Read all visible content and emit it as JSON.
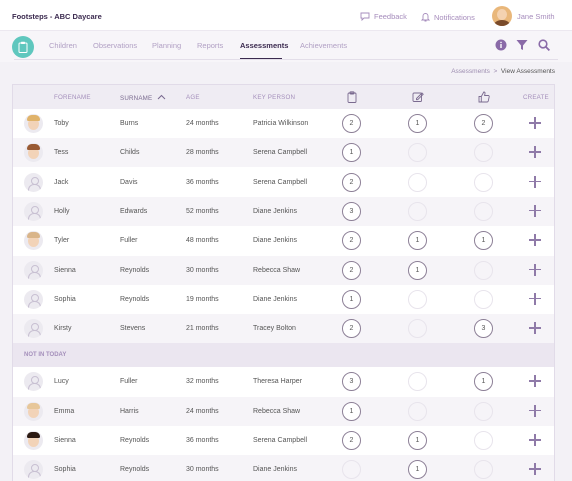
{
  "header": {
    "app_title": "Footsteps - ABC Daycare",
    "feedback": "Feedback",
    "notifications": "Notifications",
    "user_name": "Jane Smith"
  },
  "nav": {
    "tabs": [
      {
        "label": "Children"
      },
      {
        "label": "Observations"
      },
      {
        "label": "Planning"
      },
      {
        "label": "Reports"
      },
      {
        "label": "Assessments",
        "active": true
      },
      {
        "label": "Achievements"
      }
    ]
  },
  "breadcrumb": {
    "parent": "Assessments",
    "separator": ">",
    "current": "View Assessments"
  },
  "table": {
    "columns": {
      "forename": "FORENAME",
      "surname": "SURNAME",
      "age": "AGE",
      "key_person": "KEY PERSON",
      "create": "CREATE"
    },
    "column_icons": [
      "clipboard-icon",
      "edit-icon",
      "thumbs-up-icon"
    ],
    "sorted_column": "surname",
    "today_rows": [
      {
        "forename": "Toby",
        "surname": "Burns",
        "age": "24 months",
        "key_person": "Patricia Wilkinson",
        "c1": "2",
        "c2": "1",
        "c3": "2",
        "avatar": "photo",
        "hair": "#e0b36a"
      },
      {
        "forename": "Tess",
        "surname": "Childs",
        "age": "28 months",
        "key_person": "Serena Campbell",
        "c1": "1",
        "c2": "",
        "c3": "",
        "avatar": "photo",
        "hair": "#9a5b34"
      },
      {
        "forename": "Jack",
        "surname": "Davis",
        "age": "36 months",
        "key_person": "Serena Campbell",
        "c1": "2",
        "c2": "",
        "c3": "",
        "avatar": "blank"
      },
      {
        "forename": "Holly",
        "surname": "Edwards",
        "age": "52 months",
        "key_person": "Diane Jenkins",
        "c1": "3",
        "c2": "",
        "c3": "",
        "avatar": "blank"
      },
      {
        "forename": "Tyler",
        "surname": "Fuller",
        "age": "48 months",
        "key_person": "Diane Jenkins",
        "c1": "2",
        "c2": "1",
        "c3": "1",
        "avatar": "photo",
        "hair": "#d9b58a"
      },
      {
        "forename": "Sienna",
        "surname": "Reynolds",
        "age": "30 months",
        "key_person": "Rebecca Shaw",
        "c1": "2",
        "c2": "1",
        "c3": "",
        "avatar": "blank"
      },
      {
        "forename": "Sophia",
        "surname": "Reynolds",
        "age": "19 months",
        "key_person": "Diane Jenkins",
        "c1": "1",
        "c2": "",
        "c3": "",
        "avatar": "blank"
      },
      {
        "forename": "Kirsty",
        "surname": "Stevens",
        "age": "21 months",
        "key_person": "Tracey Bolton",
        "c1": "2",
        "c2": "",
        "c3": "3",
        "avatar": "blank"
      }
    ],
    "section_label": "NOT IN TODAY",
    "absent_rows": [
      {
        "forename": "Lucy",
        "surname": "Fuller",
        "age": "32 months",
        "key_person": "Theresa Harper",
        "c1": "3",
        "c2": "",
        "c3": "1",
        "avatar": "blank"
      },
      {
        "forename": "Emma",
        "surname": "Harris",
        "age": "24 months",
        "key_person": "Rebecca Shaw",
        "c1": "1",
        "c2": "",
        "c3": "",
        "avatar": "photo",
        "hair": "#e7c79a"
      },
      {
        "forename": "Sienna",
        "surname": "Reynolds",
        "age": "36 months",
        "key_person": "Serena Campbell",
        "c1": "2",
        "c2": "1",
        "c3": "",
        "avatar": "photo",
        "hair": "#2b1a12"
      },
      {
        "forename": "Sophia",
        "surname": "Reynolds",
        "age": "30 months",
        "key_person": "Diane Jenkins",
        "c1": "",
        "c2": "1",
        "c3": "",
        "avatar": "blank"
      }
    ]
  }
}
